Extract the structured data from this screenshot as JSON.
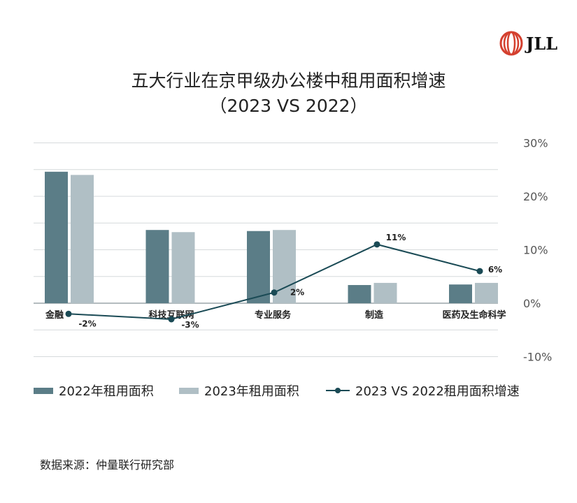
{
  "title_line1": "五大行业在京甲级办公楼中租用面积增速",
  "title_line2": "（2023 VS 2022）",
  "logo_text": "JLL",
  "source": "数据来源：仲量联行研究部",
  "chart_data": {
    "type": "bar+line",
    "categories": [
      "金融",
      "科技互联网",
      "专业服务",
      "制造",
      "医药及生命科学"
    ],
    "series": [
      {
        "name": "2022年租用面积",
        "type": "bar",
        "color": "#5b7d87",
        "values": [
          24.6,
          13.7,
          13.5,
          3.4,
          3.5
        ]
      },
      {
        "name": "2023年租用面积",
        "type": "bar",
        "color": "#b0bfc5",
        "values": [
          24.0,
          13.3,
          13.7,
          3.8,
          3.8
        ]
      },
      {
        "name": "2023 VS 2022租用面积增速",
        "type": "line",
        "color": "#1a4a55",
        "values": [
          -2,
          -3,
          2,
          11,
          6
        ],
        "labels": [
          "-2%",
          "-3%",
          "2%",
          "11%",
          "6%"
        ]
      }
    ],
    "yaxis": {
      "position": "right",
      "ticks": [
        "30%",
        "20%",
        "10%",
        "0%",
        "-10%"
      ],
      "tick_values": [
        30,
        20,
        10,
        0,
        -10
      ],
      "ylim": [
        -10,
        30
      ]
    },
    "grid": true,
    "legend": "bottom"
  }
}
